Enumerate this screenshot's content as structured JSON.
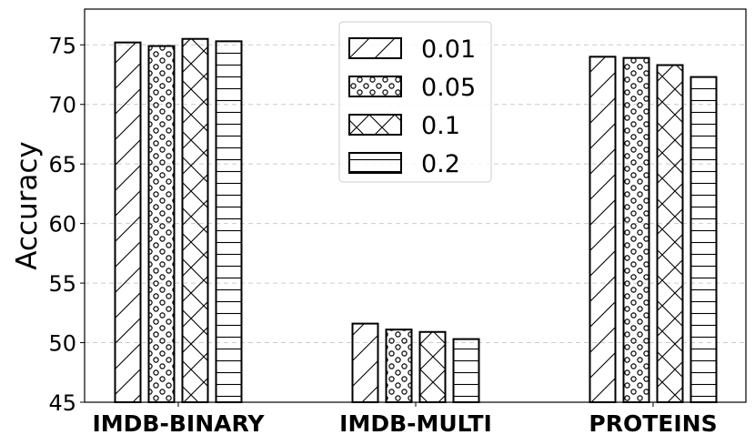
{
  "chart_data": {
    "type": "bar",
    "title": "",
    "xlabel": "",
    "ylabel": "Accuracy",
    "categories": [
      "IMDB-BINARY",
      "IMDB-MULTI",
      "PROTEINS"
    ],
    "series": [
      {
        "name": "0.01",
        "pattern": "diagonal",
        "values": [
          75.2,
          51.6,
          74.0
        ]
      },
      {
        "name": "0.05",
        "pattern": "dots",
        "values": [
          74.9,
          51.1,
          73.9
        ]
      },
      {
        "name": "0.1",
        "pattern": "cross",
        "values": [
          75.5,
          50.9,
          73.3
        ]
      },
      {
        "name": "0.2",
        "pattern": "horizontal",
        "values": [
          75.3,
          50.3,
          72.3
        ]
      }
    ],
    "ylim": [
      45,
      78
    ],
    "yticks": [
      45,
      50,
      55,
      60,
      65,
      70,
      75
    ],
    "grid": "y-dashed",
    "legend": "top-center",
    "colors": {
      "edge": "#000000",
      "fill": "#ffffff",
      "grid": "#cccccc"
    }
  }
}
